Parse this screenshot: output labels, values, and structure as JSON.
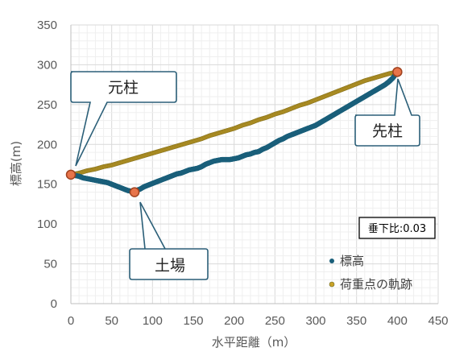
{
  "chart_data": {
    "type": "scatter",
    "xlabel": "水平距離（m）",
    "ylabel": "標高(m)",
    "xlim": [
      0,
      450
    ],
    "ylim": [
      0,
      350
    ],
    "xticks": [
      "0",
      "50",
      "100",
      "150",
      "200",
      "250",
      "300",
      "350",
      "400",
      "450"
    ],
    "yticks": [
      "0",
      "50",
      "100",
      "150",
      "200",
      "250",
      "300",
      "350"
    ],
    "grid": true,
    "legend_position": "bottom-right",
    "scale_note": "垂下比:0.03",
    "series": [
      {
        "name": "標高",
        "color": "#1a5f7a",
        "points": [
          [
            0,
            162
          ],
          [
            5,
            161
          ],
          [
            10,
            160
          ],
          [
            15,
            158
          ],
          [
            20,
            157
          ],
          [
            25,
            156
          ],
          [
            30,
            155
          ],
          [
            35,
            154
          ],
          [
            40,
            153
          ],
          [
            45,
            152
          ],
          [
            50,
            150
          ],
          [
            55,
            148
          ],
          [
            60,
            146
          ],
          [
            65,
            144
          ],
          [
            70,
            142
          ],
          [
            75,
            141
          ],
          [
            80,
            142
          ],
          [
            85,
            144
          ],
          [
            90,
            147
          ],
          [
            95,
            149
          ],
          [
            100,
            151
          ],
          [
            105,
            153
          ],
          [
            110,
            155
          ],
          [
            115,
            157
          ],
          [
            120,
            159
          ],
          [
            125,
            161
          ],
          [
            130,
            163
          ],
          [
            135,
            164
          ],
          [
            140,
            166
          ],
          [
            145,
            168
          ],
          [
            150,
            169
          ],
          [
            155,
            170
          ],
          [
            160,
            172
          ],
          [
            165,
            175
          ],
          [
            170,
            177
          ],
          [
            175,
            179
          ],
          [
            180,
            180
          ],
          [
            185,
            181
          ],
          [
            190,
            181
          ],
          [
            195,
            181
          ],
          [
            200,
            182
          ],
          [
            205,
            183
          ],
          [
            210,
            185
          ],
          [
            215,
            187
          ],
          [
            220,
            188
          ],
          [
            225,
            190
          ],
          [
            230,
            191
          ],
          [
            235,
            194
          ],
          [
            240,
            196
          ],
          [
            245,
            199
          ],
          [
            250,
            202
          ],
          [
            255,
            205
          ],
          [
            260,
            207
          ],
          [
            265,
            210
          ],
          [
            270,
            212
          ],
          [
            275,
            214
          ],
          [
            280,
            216
          ],
          [
            285,
            218
          ],
          [
            290,
            220
          ],
          [
            295,
            222
          ],
          [
            300,
            224
          ],
          [
            305,
            227
          ],
          [
            310,
            230
          ],
          [
            315,
            233
          ],
          [
            320,
            236
          ],
          [
            325,
            239
          ],
          [
            330,
            242
          ],
          [
            335,
            245
          ],
          [
            340,
            248
          ],
          [
            345,
            251
          ],
          [
            350,
            254
          ],
          [
            355,
            257
          ],
          [
            360,
            260
          ],
          [
            365,
            263
          ],
          [
            370,
            266
          ],
          [
            375,
            269
          ],
          [
            380,
            272
          ],
          [
            385,
            275
          ],
          [
            390,
            279
          ],
          [
            395,
            284
          ],
          [
            400,
            291
          ]
        ]
      },
      {
        "name": "荷重点の軌跡",
        "color": "#c9a227",
        "points": [
          [
            0,
            162
          ],
          [
            10,
            164
          ],
          [
            20,
            167
          ],
          [
            30,
            169
          ],
          [
            40,
            172
          ],
          [
            50,
            174
          ],
          [
            60,
            177
          ],
          [
            70,
            180
          ],
          [
            80,
            183
          ],
          [
            90,
            186
          ],
          [
            100,
            189
          ],
          [
            110,
            192
          ],
          [
            120,
            195
          ],
          [
            130,
            198
          ],
          [
            140,
            201
          ],
          [
            150,
            204
          ],
          [
            160,
            207
          ],
          [
            170,
            211
          ],
          [
            180,
            214
          ],
          [
            190,
            217
          ],
          [
            200,
            220
          ],
          [
            210,
            224
          ],
          [
            220,
            227
          ],
          [
            230,
            231
          ],
          [
            240,
            234
          ],
          [
            250,
            238
          ],
          [
            260,
            241
          ],
          [
            270,
            245
          ],
          [
            280,
            249
          ],
          [
            290,
            252
          ],
          [
            300,
            256
          ],
          [
            310,
            260
          ],
          [
            320,
            264
          ],
          [
            330,
            268
          ],
          [
            340,
            272
          ],
          [
            350,
            276
          ],
          [
            360,
            280
          ],
          [
            370,
            283
          ],
          [
            380,
            286
          ],
          [
            390,
            289
          ],
          [
            400,
            291
          ]
        ]
      }
    ],
    "markers": [
      {
        "name": "元柱",
        "x": 0,
        "y": 162
      },
      {
        "name": "土場",
        "x": 78,
        "y": 140
      },
      {
        "name": "先柱",
        "x": 400,
        "y": 291
      }
    ]
  },
  "callouts": {
    "motobashira": "元柱",
    "doba": "土場",
    "sakibashira": "先柱"
  },
  "colors": {
    "elevation": "#1a5f7a",
    "trajectory": "#c9a227",
    "marker_fill": "#e8744a",
    "marker_stroke": "#a0421f",
    "callout_border": "#2b5f78"
  }
}
